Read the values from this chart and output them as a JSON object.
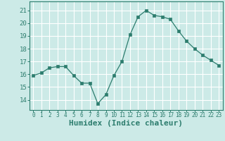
{
  "x": [
    0,
    1,
    2,
    3,
    4,
    5,
    6,
    7,
    8,
    9,
    10,
    11,
    12,
    13,
    14,
    15,
    16,
    17,
    18,
    19,
    20,
    21,
    22,
    23
  ],
  "y": [
    15.9,
    16.1,
    16.5,
    16.6,
    16.6,
    15.9,
    15.3,
    15.3,
    13.7,
    14.4,
    15.9,
    17.0,
    19.1,
    20.5,
    21.0,
    20.6,
    20.5,
    20.3,
    19.4,
    18.6,
    18.0,
    17.5,
    17.1,
    16.7
  ],
  "line_color": "#2d7d6e",
  "marker": "s",
  "marker_size": 2.2,
  "bg_color": "#cceae7",
  "grid_color": "#ffffff",
  "xlabel": "Humidex (Indice chaleur)",
  "xlabel_fontsize": 8,
  "ytick_labels": [
    "14",
    "15",
    "16",
    "17",
    "18",
    "19",
    "20",
    "21"
  ],
  "ytick_values": [
    14,
    15,
    16,
    17,
    18,
    19,
    20,
    21
  ],
  "ylim": [
    13.2,
    21.7
  ],
  "xlim": [
    -0.5,
    23.5
  ],
  "tick_color": "#2d7d6e",
  "axis_color": "#2d7d6e"
}
